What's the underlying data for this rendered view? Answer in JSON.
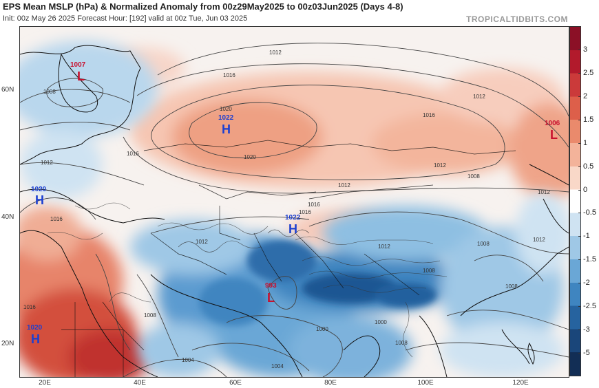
{
  "header": {
    "title": "EPS Mean MSLP (hPa) & Normalized Anomaly from 00z29May2025 to 00z03Jun2025 (Days 4-8)",
    "subtitle": "Init: 00z May 26 2025   Forecast Hour: [192]   valid at 00z Tue, Jun 03 2025",
    "brand": "TROPICALTIDBITS.COM"
  },
  "axes": {
    "lat_labels": [
      "60N",
      "40N",
      "20N"
    ],
    "lon_labels": [
      "20E",
      "40E",
      "60E",
      "80E",
      "100E",
      "120E"
    ]
  },
  "colorbar": {
    "ticks": [
      "3",
      "2.5",
      "2",
      "1.5",
      "1",
      "0.5",
      "0",
      "-0.5",
      "-1",
      "-1.5",
      "-2",
      "-2.5",
      "-3",
      "-5"
    ],
    "colors": [
      "#8b1026",
      "#b21a2c",
      "#cb3a3a",
      "#dd5f4a",
      "#ea8a6c",
      "#f3b39a",
      "#f9d8c8",
      "#ffffff",
      "#cfe3f2",
      "#9fc8e6",
      "#6aa7d6",
      "#3f85c0",
      "#26639f",
      "#1a467a",
      "#122e55"
    ]
  },
  "pressure_centers": [
    {
      "type": "L",
      "value": "1007"
    },
    {
      "type": "H",
      "value": "1022"
    },
    {
      "type": "L",
      "value": "1006"
    },
    {
      "type": "H",
      "value": "1020"
    },
    {
      "type": "H",
      "value": "1022"
    },
    {
      "type": "L",
      "value": "993"
    },
    {
      "type": "H",
      "value": "1020"
    }
  ],
  "isobar_labels": [
    "1012",
    "1016",
    "1020",
    "1020",
    "1016",
    "1012",
    "1012",
    "1016",
    "1012",
    "1008",
    "1012",
    "1016",
    "1008",
    "1012",
    "1016",
    "1008",
    "1004",
    "1004",
    "1008",
    "1012",
    "1016",
    "1008",
    "1012",
    "1000",
    "1000",
    "1008",
    "1008",
    "1012",
    "1016"
  ]
}
